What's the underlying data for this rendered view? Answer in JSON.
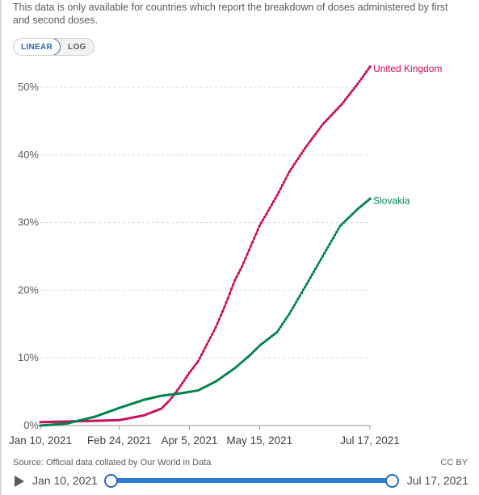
{
  "note": "This data is only available for countries which report the breakdown of doses administered by first and second doses.",
  "scale_toggle": {
    "linear_label": "LINEAR",
    "log_label": "LOG",
    "selected": "LINEAR"
  },
  "colors": {
    "uk": "#c8115e",
    "slovakia": "#00804a",
    "grid": "#d8d8d8",
    "axis_text": "#5b5b5b",
    "accent": "#2c68b8"
  },
  "chart_data": {
    "type": "line",
    "title": "",
    "xlabel": "",
    "ylabel": "",
    "x_ticks": [
      "Jan 10, 2021",
      "Feb 24, 2021",
      "Apr 5, 2021",
      "May 15, 2021",
      "Jul 17, 2021"
    ],
    "y_ticks": [
      "0%",
      "10%",
      "20%",
      "30%",
      "40%",
      "50%"
    ],
    "ylim": [
      0,
      50
    ],
    "grid": "horizontal dashed",
    "legend": "inline labels at line ends",
    "series": [
      {
        "name": "United Kingdom",
        "x": [
          "2021-01-10",
          "2021-01-25",
          "2021-02-10",
          "2021-02-24",
          "2021-03-10",
          "2021-03-20",
          "2021-03-25",
          "2021-03-30",
          "2021-04-05",
          "2021-04-10",
          "2021-04-20",
          "2021-04-25",
          "2021-05-01",
          "2021-05-05",
          "2021-05-10",
          "2021-05-15",
          "2021-05-25",
          "2021-06-01",
          "2021-06-10",
          "2021-06-20",
          "2021-07-01",
          "2021-07-10",
          "2021-07-17"
        ],
        "values": [
          0.5,
          0.6,
          0.7,
          0.8,
          1.5,
          2.5,
          3.8,
          5.5,
          7.8,
          9.5,
          14.5,
          17.5,
          21.5,
          23.5,
          26.5,
          29.5,
          34.0,
          37.5,
          41.0,
          44.5,
          47.5,
          50.5,
          53.0
        ]
      },
      {
        "name": "Slovakia",
        "x": [
          "2021-01-10",
          "2021-01-25",
          "2021-02-10",
          "2021-02-24",
          "2021-03-10",
          "2021-03-20",
          "2021-04-01",
          "2021-04-10",
          "2021-04-20",
          "2021-05-01",
          "2021-05-10",
          "2021-05-15",
          "2021-05-25",
          "2021-06-01",
          "2021-06-10",
          "2021-06-20",
          "2021-06-30",
          "2021-07-10",
          "2021-07-17"
        ],
        "values": [
          0,
          0.3,
          1.3,
          2.6,
          3.8,
          4.4,
          4.8,
          5.2,
          6.5,
          8.5,
          10.5,
          11.8,
          13.8,
          16.5,
          20.5,
          25.0,
          29.5,
          32.0,
          33.5
        ]
      }
    ]
  },
  "source": {
    "prefix": "Source:",
    "text": "Official data collated by Our World in Data"
  },
  "license": "CC BY",
  "timeline": {
    "start_label": "Jan 10, 2021",
    "end_label": "Jul 17, 2021"
  }
}
